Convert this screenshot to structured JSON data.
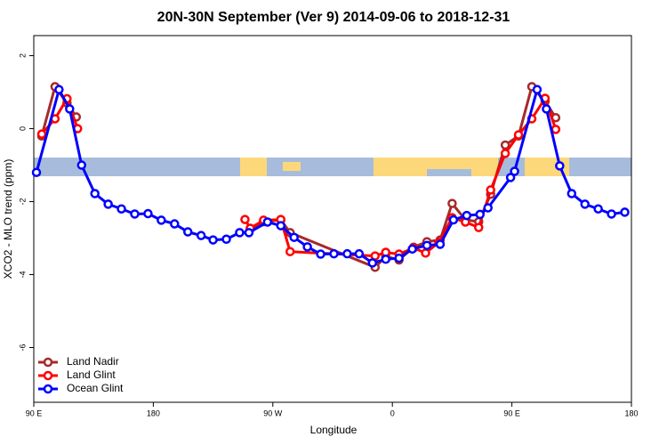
{
  "chart_data": {
    "type": "line",
    "title": "20N-30N September (Ver 9)   2014-09-06 to 2018-12-31",
    "x_label": "Longitude",
    "y_label": "XCO2 - MLO trend (ppm)",
    "xlim": [
      90,
      540
    ],
    "ylim": [
      -7.5,
      2.55
    ],
    "xticks": [
      {
        "value": 90,
        "label": "90 E"
      },
      180,
      {
        "value": 270,
        "label": "90 W"
      },
      {
        "value": 360,
        "label": "0"
      },
      {
        "value": 450,
        "label": "90 E"
      },
      {
        "value": 540,
        "label": "180"
      }
    ],
    "yticks": [
      -6,
      -4,
      -2,
      0,
      2
    ],
    "legend": "bottom-left",
    "series": [
      {
        "name": "Land Nadir",
        "color": "#a52a2a",
        "x": [
          96,
          106,
          115,
          122,
          126,
          253,
          263,
          276,
          283,
          347,
          355,
          365,
          376,
          386,
          396,
          405,
          415,
          425,
          434,
          445,
          455,
          465,
          475,
          483
        ],
        "values": [
          -0.2,
          1.15,
          0.7,
          0.32,
          null,
          -2.75,
          -2.55,
          -2.5,
          -2.85,
          -3.8,
          -3.5,
          -3.6,
          -3.25,
          -3.1,
          -3.05,
          -2.05,
          -2.5,
          -2.55,
          -1.8,
          -0.45,
          -0.2,
          1.15,
          0.75,
          0.3
        ]
      },
      {
        "name": "Land Glint",
        "color": "#ff0000",
        "x": [
          96,
          106,
          115,
          123,
          126,
          249,
          253,
          263,
          276,
          283,
          347,
          355,
          365,
          376,
          385,
          395,
          405,
          415,
          425,
          434,
          445,
          455,
          465,
          475,
          483
        ],
        "values": [
          -0.15,
          0.27,
          0.82,
          0,
          null,
          -2.49,
          -2.73,
          -2.51,
          -2.49,
          -3.37,
          -3.49,
          -3.39,
          -3.44,
          -3.27,
          -3.41,
          -3.12,
          -2.44,
          -2.56,
          -2.71,
          -1.68,
          -0.68,
          -0.17,
          0.27,
          0.83,
          -0.02
        ]
      },
      {
        "name": "Ocean Glint",
        "color": "#0000ff",
        "x": [
          92,
          109,
          117,
          126,
          136,
          146,
          156,
          166,
          176,
          186,
          196,
          206,
          216,
          225,
          235,
          245,
          252,
          266,
          276,
          286,
          296,
          306,
          316,
          326,
          335,
          345,
          355,
          365,
          375,
          386,
          396,
          406,
          416,
          426,
          432,
          449,
          452,
          469,
          476,
          486,
          495,
          505,
          515,
          525,
          535
        ],
        "values": [
          -1.2,
          1.07,
          0.54,
          -1.0,
          -1.78,
          -2.07,
          -2.2,
          -2.34,
          -2.33,
          -2.51,
          -2.61,
          -2.83,
          -2.93,
          -3.05,
          -3.03,
          -2.85,
          -2.85,
          -2.56,
          -2.66,
          -2.98,
          -3.24,
          -3.44,
          -3.43,
          -3.43,
          -3.43,
          -3.68,
          -3.58,
          -3.55,
          -3.3,
          -3.2,
          -3.17,
          -2.5,
          -2.38,
          -2.35,
          -2.17,
          -1.34,
          -1.17,
          1.07,
          0.54,
          -1.02,
          -1.78,
          -2.07,
          -2.2,
          -2.34,
          -2.29
        ]
      }
    ]
  }
}
